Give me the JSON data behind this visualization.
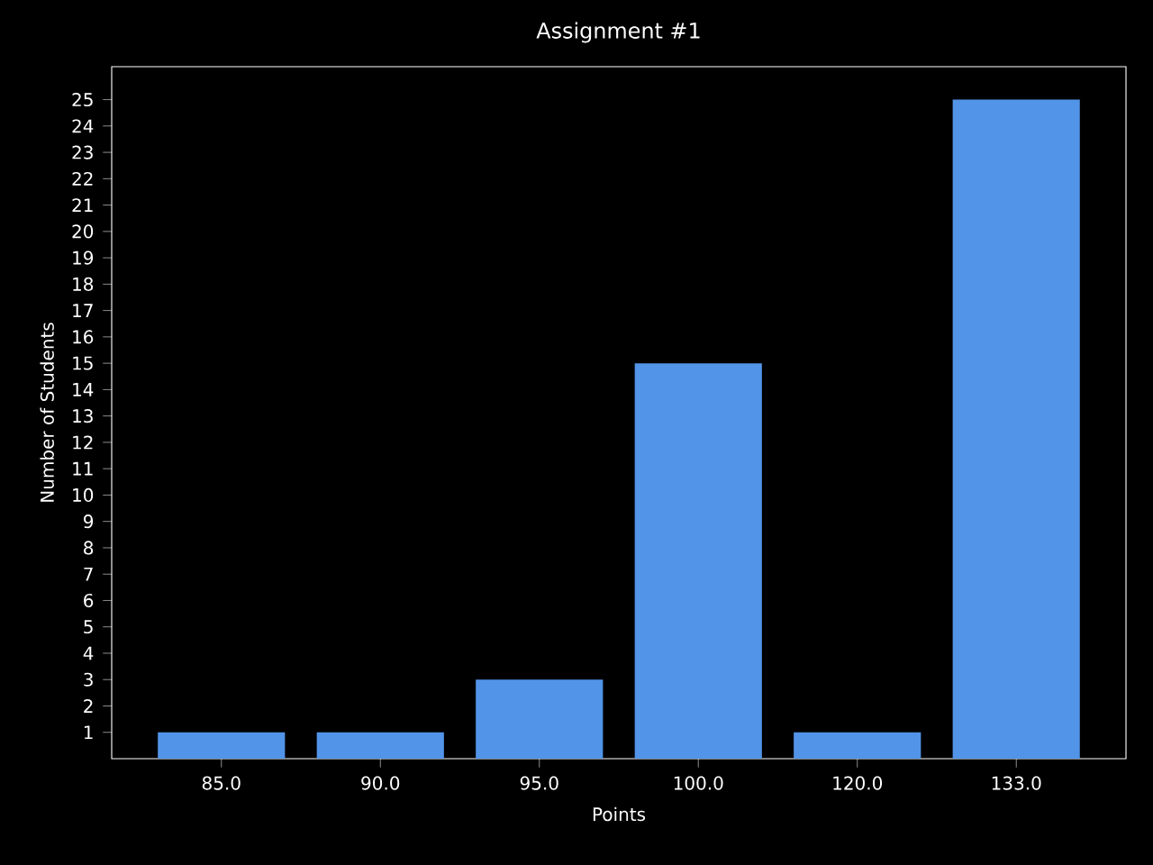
{
  "chart_data": {
    "type": "bar",
    "title": "Assignment #1",
    "xlabel": "Points",
    "ylabel": "Number of Students",
    "categories": [
      "85.0",
      "90.0",
      "95.0",
      "100.0",
      "120.0",
      "133.0"
    ],
    "values": [
      1,
      1,
      3,
      15,
      1,
      25
    ],
    "color": "#5294e8",
    "ylim": [
      0,
      26.25
    ],
    "yticks": [
      1,
      2,
      3,
      4,
      5,
      6,
      7,
      8,
      9,
      10,
      11,
      12,
      13,
      14,
      15,
      16,
      17,
      18,
      19,
      20,
      21,
      22,
      23,
      24,
      25
    ]
  }
}
